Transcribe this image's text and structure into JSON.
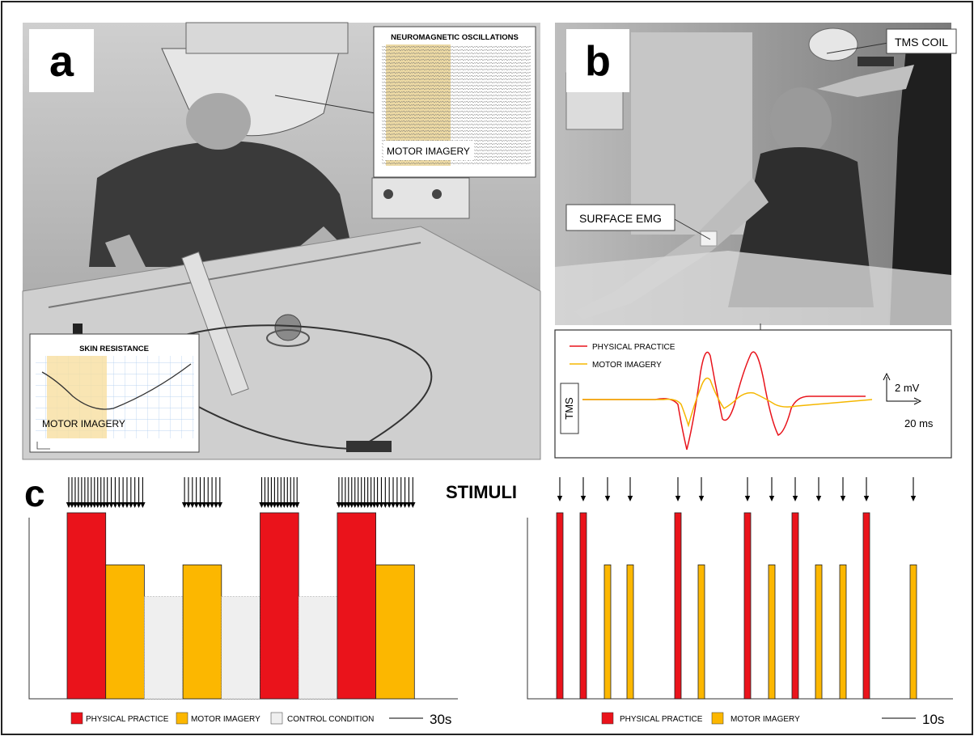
{
  "panel_a": {
    "letter": "a",
    "meg_inset": {
      "title": "NEUROMAGNETIC OSCILLATIONS",
      "label": "MOTOR IMAGERY"
    },
    "skin_inset": {
      "title": "SKIN RESISTANCE",
      "label": "MOTOR IMAGERY"
    }
  },
  "panel_b": {
    "letter": "b",
    "tms_coil_label": "TMS COIL",
    "surface_emg_label": "SURFACE EMG",
    "mep_inset": {
      "tms_label": "TMS",
      "scale_y": "2 mV",
      "scale_x": "20 ms",
      "legend": [
        {
          "label": "PHYSICAL PRACTICE",
          "color": "#e8131b"
        },
        {
          "label": "MOTOR IMAGERY",
          "color": "#f5b700"
        }
      ]
    }
  },
  "panel_c": {
    "letter": "c",
    "stimuli_label": "STIMULI",
    "left_legend": [
      {
        "label": "PHYSICAL PRACTICE",
        "color": "#ea131b"
      },
      {
        "label": "MOTOR IMAGERY",
        "color": "#fcb700"
      },
      {
        "label": "CONTROL CONDITION",
        "color": "#efefef"
      }
    ],
    "left_scale": "30s",
    "right_legend": [
      {
        "label": "PHYSICAL PRACTICE",
        "color": "#ea131b"
      },
      {
        "label": "MOTOR IMAGERY",
        "color": "#fcb700"
      }
    ],
    "right_scale": "10s"
  },
  "colors": {
    "physical": "#ea131b",
    "imagery": "#fcb700",
    "control": "#efefef",
    "trace_pp": "#e8131b",
    "trace_mi": "#f5b700"
  },
  "chart_data": [
    {
      "type": "bar",
      "name_hint": "block design",
      "blocks": [
        "physical",
        "imagery",
        "control",
        "imagery",
        "control",
        "physical",
        "control",
        "physical",
        "imagery"
      ],
      "levels": {
        "physical": 1.0,
        "imagery": 0.72,
        "control": 0.55
      }
    },
    {
      "type": "bar",
      "name_hint": "event-related design",
      "events": [
        "physical",
        "physical",
        "imagery",
        "imagery",
        "physical",
        "imagery",
        "physical",
        "imagery",
        "physical",
        "imagery",
        "imagery",
        "physical",
        "imagery"
      ],
      "levels": {
        "physical": 1.0,
        "imagery": 0.72
      }
    }
  ]
}
